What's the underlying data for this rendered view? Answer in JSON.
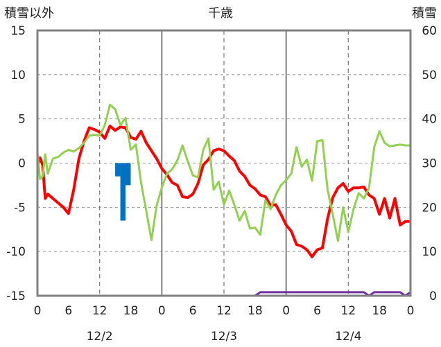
{
  "chart_data": {
    "type": "line",
    "title": "千歳",
    "y_left_label": "積雪以外",
    "y_right_label": "積雪",
    "y_left_range": [
      -15,
      15
    ],
    "y_right_range": [
      0,
      60
    ],
    "y_left_ticks": [
      "15",
      "10",
      "5",
      "0",
      "-5",
      "-10",
      "-15"
    ],
    "y_right_ticks": [
      "60",
      "50",
      "40",
      "30",
      "20",
      "10",
      "0"
    ],
    "x_range_hours": [
      0,
      72
    ],
    "x_tick_labels": [
      "0",
      "6",
      "12",
      "18",
      "0",
      "6",
      "12",
      "18",
      "0",
      "6",
      "12",
      "18",
      "0"
    ],
    "date_labels": [
      "12/2",
      "12/3",
      "12/4"
    ],
    "series": [
      {
        "color": "#ff0000",
        "x": [
          0,
          0.5,
          1,
          1.5,
          2,
          3,
          4,
          5,
          6,
          7,
          8,
          9,
          10,
          11,
          12,
          13,
          14,
          15,
          16,
          17,
          18,
          19,
          20,
          21,
          22,
          23,
          24,
          25,
          26,
          27,
          28,
          29,
          30,
          31,
          32,
          33,
          34,
          35,
          36,
          37,
          38,
          39,
          40,
          41,
          42,
          43,
          44,
          45,
          46,
          47,
          48,
          49,
          50,
          51,
          52,
          53,
          54,
          55,
          56,
          57,
          58,
          59,
          60,
          61,
          62,
          63,
          64,
          65,
          66,
          67,
          68,
          69,
          70,
          71,
          72
        ],
        "y": [
          -0.3,
          0.6,
          -0.2,
          -4.0,
          -3.5,
          -4.0,
          -4.5,
          -5.0,
          -5.7,
          -3.0,
          0.5,
          2.5,
          4.0,
          3.8,
          3.5,
          2.8,
          4.2,
          3.7,
          4.1,
          4.0,
          2.9,
          2.7,
          3.6,
          2.3,
          1.4,
          0.5,
          -0.6,
          -1.3,
          -2.2,
          -2.5,
          -3.8,
          -3.9,
          -3.5,
          -2.3,
          -0.2,
          0.4,
          1.4,
          1.6,
          1.4,
          0.8,
          0.3,
          -0.9,
          -1.5,
          -2.5,
          -2.9,
          -3.6,
          -3.8,
          -4.8,
          -4.7,
          -5.8,
          -7.0,
          -7.7,
          -9.2,
          -9.4,
          -9.8,
          -10.6,
          -9.8,
          -9.6,
          -6.3,
          -3.9,
          -2.8,
          -2.3,
          -3.2,
          -2.8,
          -2.8,
          -2.7,
          -3.6,
          -4.0,
          -5.8,
          -4.0,
          -6.2,
          -4.0,
          -7.0,
          -6.6,
          -6.6
        ]
      },
      {
        "color": "#92d050",
        "x": [
          0,
          0.5,
          1,
          1.5,
          2,
          3,
          4,
          5,
          6,
          7,
          8,
          9,
          10,
          11,
          12,
          13,
          14,
          15,
          16,
          17,
          18,
          19,
          20,
          21,
          22,
          23,
          24,
          25,
          26,
          27,
          28,
          29,
          30,
          31,
          32,
          33,
          34,
          35,
          36,
          37,
          38,
          39,
          40,
          41,
          42,
          43,
          44,
          45,
          46,
          47,
          48,
          49,
          50,
          51,
          52,
          53,
          54,
          55,
          56,
          57,
          58,
          59,
          60,
          61,
          62,
          63,
          64,
          65,
          66,
          67,
          68,
          69,
          70,
          71,
          72
        ],
        "y": [
          1.3,
          -1.8,
          -1.5,
          1.0,
          -1.2,
          0.5,
          0.7,
          1.2,
          1.5,
          1.3,
          1.7,
          2.3,
          3.1,
          3.2,
          3.1,
          4.3,
          6.6,
          6.1,
          4.3,
          5.1,
          1.5,
          2.1,
          -2.2,
          -5.4,
          -8.7,
          -4.8,
          -2.8,
          -1.2,
          -0.7,
          0.3,
          2.0,
          0.2,
          -1.4,
          -1.6,
          1.5,
          2.8,
          -3.0,
          -2.1,
          -4.7,
          -3.1,
          -4.7,
          -6.5,
          -5.4,
          -7.4,
          -7.3,
          -8.1,
          -4.2,
          -5.2,
          -3.6,
          -2.5,
          -1.9,
          -1.2,
          1.8,
          -0.4,
          0.4,
          -2.0,
          2.5,
          2.6,
          -3.0,
          -5.8,
          -8.8,
          -5.0,
          -7.8,
          -5.2,
          -3.4,
          -4.0,
          -2.8,
          1.8,
          3.6,
          2.3,
          1.9,
          2.0,
          2.1,
          2.0,
          2.0
        ]
      },
      {
        "color": "#7030a0",
        "axis": "right",
        "x": [
          0,
          42,
          43,
          63,
          64,
          65,
          66,
          70,
          71,
          72
        ],
        "y": [
          0,
          0,
          0.8,
          0.8,
          0,
          0.8,
          0.8,
          0.8,
          0,
          0.8
        ]
      }
    ],
    "bars": {
      "color": "#0070c0",
      "x": [
        15.5,
        16.5,
        17.5
      ],
      "y": [
        -1.5,
        -6.5,
        -2.5
      ]
    },
    "grid": true
  }
}
